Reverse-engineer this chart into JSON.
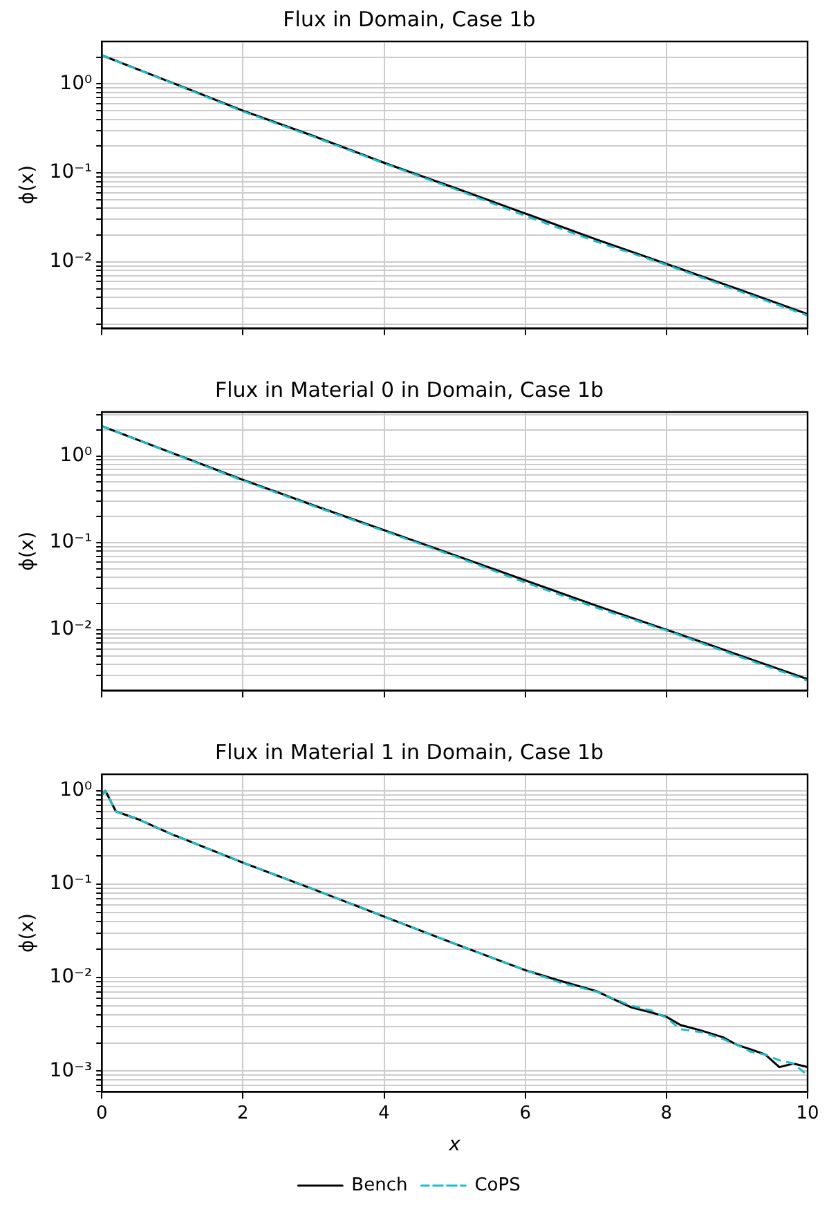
{
  "chart_data": [
    {
      "type": "line",
      "title": "Flux in Domain, Case 1b",
      "ylabel": "ϕ(x)",
      "log": "y",
      "grid": true,
      "tick_labels": "y",
      "xlim": [
        0,
        10
      ],
      "xticks": [
        0,
        2,
        4,
        6,
        8,
        10
      ],
      "ylim": [
        0.0018,
        3
      ],
      "yticks": [
        {
          "value": 0.002,
          "label": null
        },
        {
          "value": 0.003,
          "label": null
        },
        {
          "value": 0.004,
          "label": null
        },
        {
          "value": 0.005,
          "label": null
        },
        {
          "value": 0.006,
          "label": null
        },
        {
          "value": 0.007,
          "label": null
        },
        {
          "value": 0.008,
          "label": null
        },
        {
          "value": 0.009,
          "label": null
        },
        {
          "value": 0.01,
          "label": "10⁻²"
        },
        {
          "value": 0.02,
          "label": null
        },
        {
          "value": 0.03,
          "label": null
        },
        {
          "value": 0.04,
          "label": null
        },
        {
          "value": 0.05,
          "label": null
        },
        {
          "value": 0.06,
          "label": null
        },
        {
          "value": 0.07,
          "label": null
        },
        {
          "value": 0.08,
          "label": null
        },
        {
          "value": 0.09,
          "label": null
        },
        {
          "value": 0.1,
          "label": "10⁻¹"
        },
        {
          "value": 0.2,
          "label": null
        },
        {
          "value": 0.3,
          "label": null
        },
        {
          "value": 0.4,
          "label": null
        },
        {
          "value": 0.5,
          "label": null
        },
        {
          "value": 0.6,
          "label": null
        },
        {
          "value": 0.7,
          "label": null
        },
        {
          "value": 0.8,
          "label": null
        },
        {
          "value": 0.9,
          "label": null
        },
        {
          "value": 1,
          "label": "10⁰"
        },
        {
          "value": 2,
          "label": null
        }
      ],
      "x": [
        0,
        1,
        2,
        3,
        4,
        5,
        6,
        7,
        8,
        9,
        10
      ],
      "series": [
        {
          "color": "#000000",
          "line_style": "solid",
          "values": [
            2.1,
            1.03,
            0.5,
            0.26,
            0.13,
            0.068,
            0.035,
            0.018,
            0.0095,
            0.005,
            0.0026
          ]
        },
        {
          "color": "#17becf",
          "line_style": "dashed",
          "values": [
            2.1,
            1.02,
            0.49,
            0.255,
            0.128,
            0.066,
            0.033,
            0.017,
            0.0093,
            0.0048,
            0.0025
          ]
        }
      ]
    },
    {
      "type": "line",
      "title": "Flux in Material 0 in Domain, Case 1b",
      "ylabel": "ϕ(x)",
      "log": "y",
      "grid": true,
      "tick_labels": "y",
      "xlim": [
        0,
        10
      ],
      "xticks": [
        0,
        2,
        4,
        6,
        8,
        10
      ],
      "ylim": [
        0.002,
        3.2
      ],
      "yticks": [
        {
          "value": 0.003,
          "label": null
        },
        {
          "value": 0.004,
          "label": null
        },
        {
          "value": 0.005,
          "label": null
        },
        {
          "value": 0.006,
          "label": null
        },
        {
          "value": 0.007,
          "label": null
        },
        {
          "value": 0.008,
          "label": null
        },
        {
          "value": 0.009,
          "label": null
        },
        {
          "value": 0.01,
          "label": "10⁻²"
        },
        {
          "value": 0.02,
          "label": null
        },
        {
          "value": 0.03,
          "label": null
        },
        {
          "value": 0.04,
          "label": null
        },
        {
          "value": 0.05,
          "label": null
        },
        {
          "value": 0.06,
          "label": null
        },
        {
          "value": 0.07,
          "label": null
        },
        {
          "value": 0.08,
          "label": null
        },
        {
          "value": 0.09,
          "label": null
        },
        {
          "value": 0.1,
          "label": "10⁻¹"
        },
        {
          "value": 0.2,
          "label": null
        },
        {
          "value": 0.3,
          "label": null
        },
        {
          "value": 0.4,
          "label": null
        },
        {
          "value": 0.5,
          "label": null
        },
        {
          "value": 0.6,
          "label": null
        },
        {
          "value": 0.7,
          "label": null
        },
        {
          "value": 0.8,
          "label": null
        },
        {
          "value": 0.9,
          "label": null
        },
        {
          "value": 1,
          "label": "10⁰"
        },
        {
          "value": 2,
          "label": null
        },
        {
          "value": 3,
          "label": null
        }
      ],
      "x": [
        0,
        1,
        2,
        3,
        4,
        5,
        6,
        7,
        8,
        9,
        10
      ],
      "series": [
        {
          "color": "#000000",
          "line_style": "solid",
          "values": [
            2.2,
            1.08,
            0.53,
            0.27,
            0.14,
            0.072,
            0.037,
            0.019,
            0.01,
            0.0052,
            0.0027
          ]
        },
        {
          "color": "#17becf",
          "line_style": "dashed",
          "values": [
            2.2,
            1.07,
            0.52,
            0.265,
            0.137,
            0.07,
            0.035,
            0.018,
            0.0098,
            0.005,
            0.0026
          ]
        }
      ]
    },
    {
      "type": "line",
      "title": "Flux in Material 1 in Domain, Case 1b",
      "xlabel": "x",
      "ylabel": "ϕ(x)",
      "log": "y",
      "grid": true,
      "legend": "bottom",
      "xlim": [
        0,
        10
      ],
      "xticks": [
        0,
        2,
        4,
        6,
        8,
        10
      ],
      "ylim": [
        0.0006,
        1.5
      ],
      "yticks": [
        {
          "value": 0.0006,
          "label": null
        },
        {
          "value": 0.0007,
          "label": null
        },
        {
          "value": 0.0008,
          "label": null
        },
        {
          "value": 0.0009,
          "label": null
        },
        {
          "value": 0.001,
          "label": "10⁻³"
        },
        {
          "value": 0.002,
          "label": null
        },
        {
          "value": 0.003,
          "label": null
        },
        {
          "value": 0.004,
          "label": null
        },
        {
          "value": 0.005,
          "label": null
        },
        {
          "value": 0.006,
          "label": null
        },
        {
          "value": 0.007,
          "label": null
        },
        {
          "value": 0.008,
          "label": null
        },
        {
          "value": 0.009,
          "label": null
        },
        {
          "value": 0.01,
          "label": "10⁻²"
        },
        {
          "value": 0.02,
          "label": null
        },
        {
          "value": 0.03,
          "label": null
        },
        {
          "value": 0.04,
          "label": null
        },
        {
          "value": 0.05,
          "label": null
        },
        {
          "value": 0.06,
          "label": null
        },
        {
          "value": 0.07,
          "label": null
        },
        {
          "value": 0.08,
          "label": null
        },
        {
          "value": 0.09,
          "label": null
        },
        {
          "value": 0.1,
          "label": "10⁻¹"
        },
        {
          "value": 0.2,
          "label": null
        },
        {
          "value": 0.3,
          "label": null
        },
        {
          "value": 0.4,
          "label": null
        },
        {
          "value": 0.5,
          "label": null
        },
        {
          "value": 0.6,
          "label": null
        },
        {
          "value": 0.7,
          "label": null
        },
        {
          "value": 0.8,
          "label": null
        },
        {
          "value": 0.9,
          "label": null
        },
        {
          "value": 1,
          "label": "10⁰"
        }
      ],
      "x": [
        0,
        0.05,
        0.2,
        0.5,
        1,
        2,
        3,
        4,
        5,
        6,
        6.5,
        7,
        7.5,
        7.8,
        8,
        8.2,
        8.5,
        8.8,
        9,
        9.2,
        9.4,
        9.6,
        9.8,
        10
      ],
      "series": [
        {
          "name": "Bench",
          "color": "#000000",
          "line_style": "solid",
          "values": [
            0.9,
            1.0,
            0.6,
            0.5,
            0.34,
            0.17,
            0.088,
            0.045,
            0.023,
            0.012,
            0.0092,
            0.0072,
            0.0048,
            0.0042,
            0.0038,
            0.0031,
            0.0027,
            0.0023,
            0.0019,
            0.0017,
            0.0015,
            0.0011,
            0.0012,
            0.0011
          ]
        },
        {
          "name": "CoPS",
          "color": "#17becf",
          "line_style": "dashed",
          "values": [
            0.9,
            1.0,
            0.6,
            0.5,
            0.34,
            0.17,
            0.088,
            0.045,
            0.023,
            0.012,
            0.0088,
            0.0071,
            0.005,
            0.0044,
            0.0037,
            0.0028,
            0.0026,
            0.0022,
            0.0019,
            0.0016,
            0.0015,
            0.0013,
            0.0012,
            0.0009
          ]
        }
      ]
    }
  ]
}
